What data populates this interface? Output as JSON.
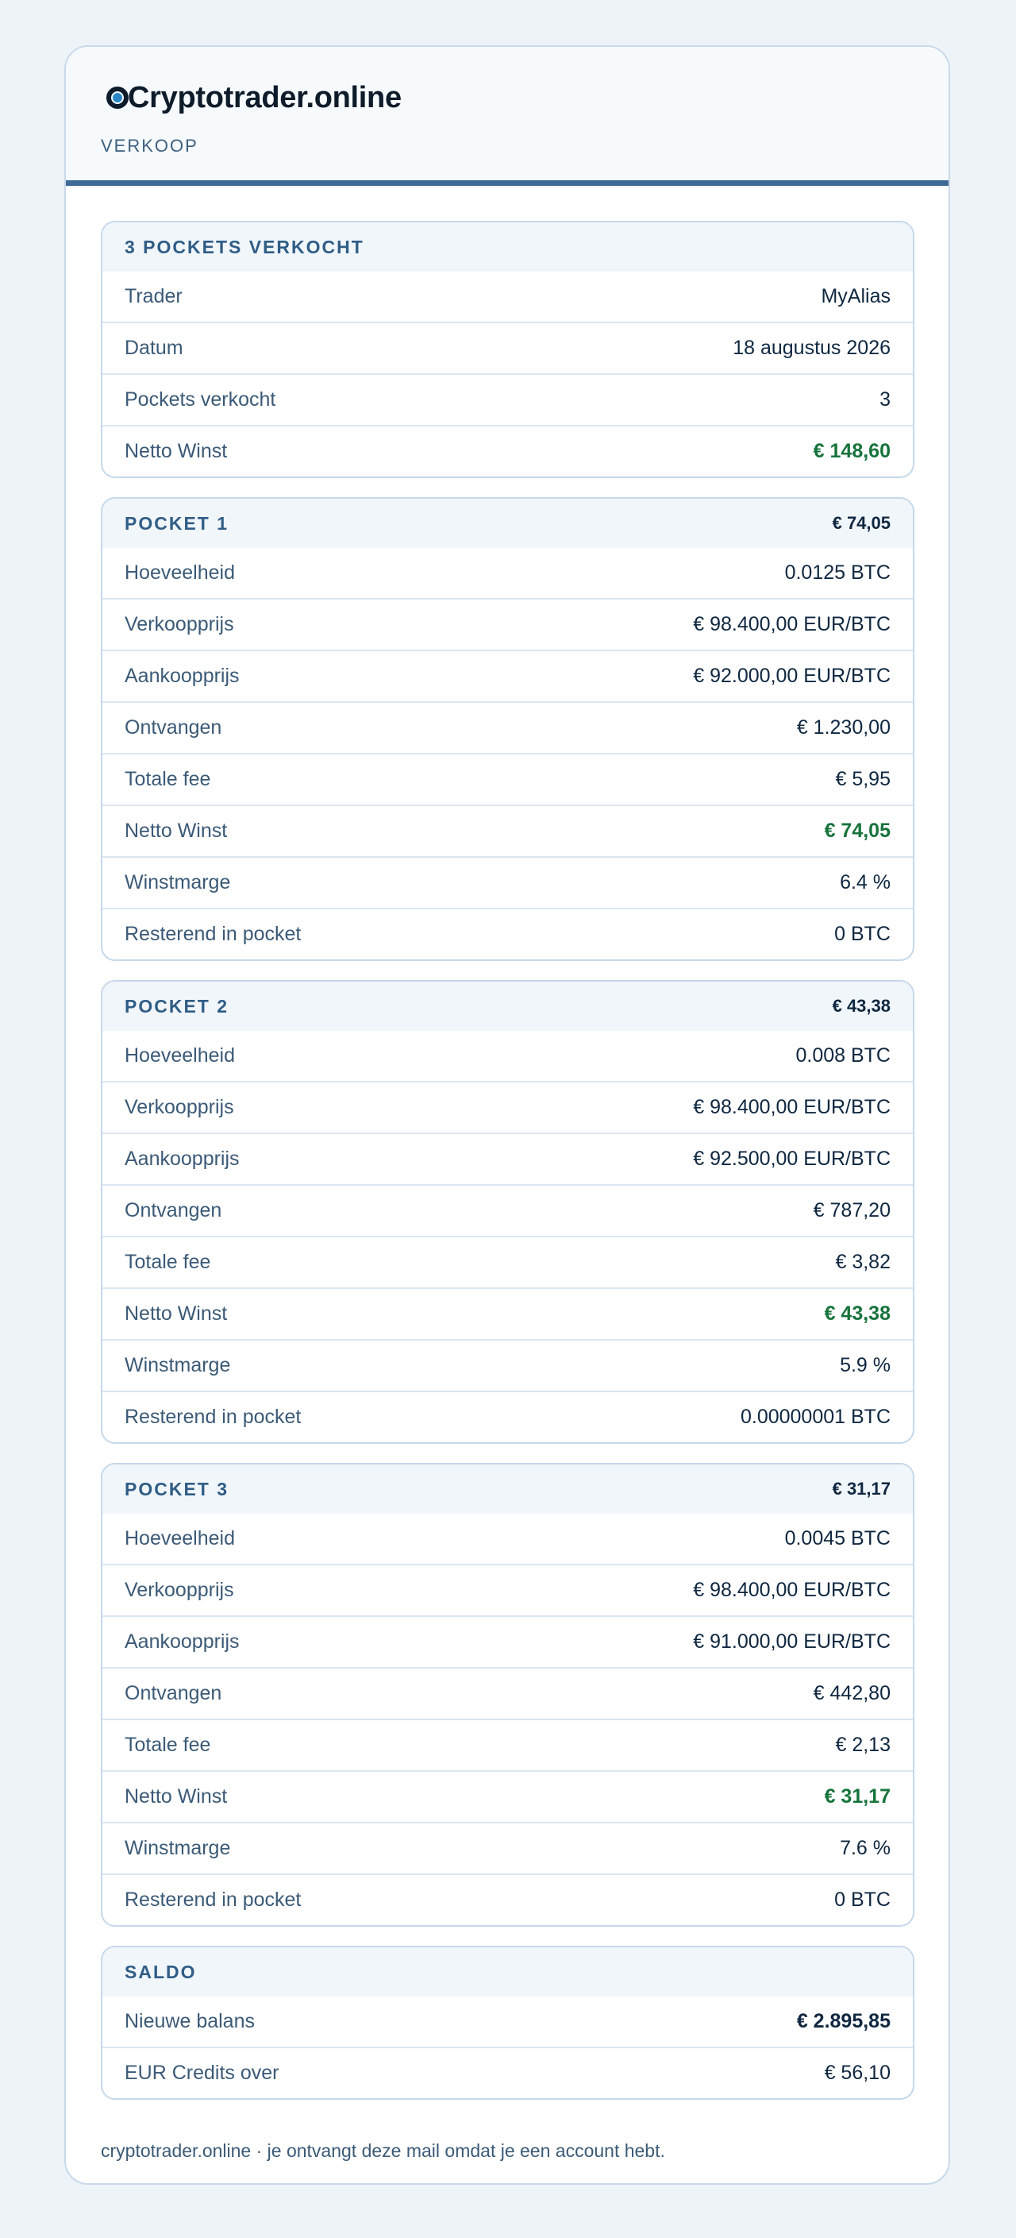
{
  "brand": {
    "name": "Cryptotrader.online",
    "subtitle": "VERKOOP",
    "logo_icon": "ring-logo-icon",
    "accent": "#3d6a96"
  },
  "summary": {
    "title": "3 POCKETS VERKOCHT",
    "rows": [
      {
        "label": "Trader",
        "value": "MyAlias"
      },
      {
        "label": "Datum",
        "value": "18 augustus 2026"
      },
      {
        "label": "Pockets verkocht",
        "value": "3"
      },
      {
        "label": "Netto Winst",
        "value": "€ 148,60"
      }
    ]
  },
  "pockets": [
    {
      "title": "POCKET 1",
      "total": "€ 74,05",
      "rows": [
        {
          "label": "Hoeveelheid",
          "value": "0.0125 BTC"
        },
        {
          "label": "Verkoopprijs",
          "value": "€ 98.400,00 EUR/BTC"
        },
        {
          "label": "Aankoopprijs",
          "value": "€ 92.000,00 EUR/BTC"
        },
        {
          "label": "Ontvangen",
          "value": "€ 1.230,00"
        },
        {
          "label": "Totale fee",
          "value": "€ 5,95"
        },
        {
          "label": "Netto Winst",
          "value": "€ 74,05"
        },
        {
          "label": "Winstmarge",
          "value": "6.4 %"
        },
        {
          "label": "Resterend in pocket",
          "value": "0 BTC"
        }
      ]
    },
    {
      "title": "POCKET 2",
      "total": "€ 43,38",
      "rows": [
        {
          "label": "Hoeveelheid",
          "value": "0.008 BTC"
        },
        {
          "label": "Verkoopprijs",
          "value": "€ 98.400,00 EUR/BTC"
        },
        {
          "label": "Aankoopprijs",
          "value": "€ 92.500,00 EUR/BTC"
        },
        {
          "label": "Ontvangen",
          "value": "€ 787,20"
        },
        {
          "label": "Totale fee",
          "value": "€ 3,82"
        },
        {
          "label": "Netto Winst",
          "value": "€ 43,38"
        },
        {
          "label": "Winstmarge",
          "value": "5.9 %"
        },
        {
          "label": "Resterend in pocket",
          "value": "0.00000001 BTC"
        }
      ]
    },
    {
      "title": "POCKET 3",
      "total": "€ 31,17",
      "rows": [
        {
          "label": "Hoeveelheid",
          "value": "0.0045 BTC"
        },
        {
          "label": "Verkoopprijs",
          "value": "€ 98.400,00 EUR/BTC"
        },
        {
          "label": "Aankoopprijs",
          "value": "€ 91.000,00 EUR/BTC"
        },
        {
          "label": "Ontvangen",
          "value": "€ 442,80"
        },
        {
          "label": "Totale fee",
          "value": "€ 2,13"
        },
        {
          "label": "Netto Winst",
          "value": "€ 31,17"
        },
        {
          "label": "Winstmarge",
          "value": "7.6 %"
        },
        {
          "label": "Resterend in pocket",
          "value": "0 BTC"
        }
      ]
    }
  ],
  "saldo": {
    "title": "SALDO",
    "rows": [
      {
        "label": "Nieuwe balans",
        "value": "€ 2.895,85"
      },
      {
        "label": "EUR Credits over",
        "value": "€ 56,10"
      }
    ]
  },
  "footer": {
    "text": "cryptotrader.online · je ontvangt deze mail omdat je een account hebt."
  },
  "colors": {
    "profit": "#17733b",
    "label": "#3b5a77",
    "heading": "#2f5d86"
  }
}
